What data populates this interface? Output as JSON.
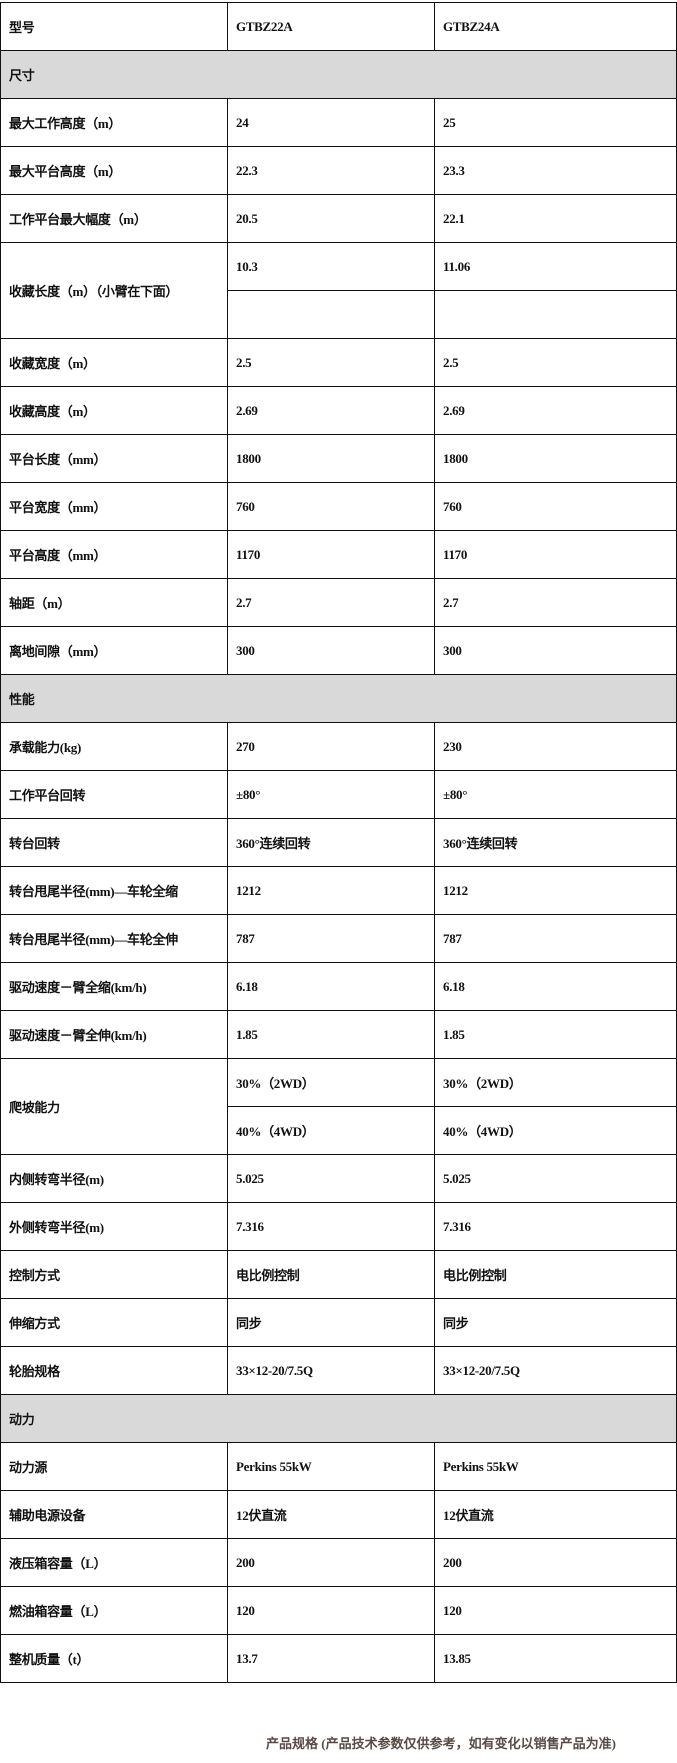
{
  "header": {
    "label": "型号",
    "models": [
      "GTBZ22A",
      "GTBZ24A"
    ]
  },
  "rows": [
    {
      "section": "尺寸"
    },
    {
      "label": "最大工作高度（m）",
      "values": [
        "24",
        "25"
      ]
    },
    {
      "label": "最大平台高度（m）",
      "values": [
        "22.3",
        "23.3"
      ]
    },
    {
      "label": "工作平台最大幅度（m）",
      "values": [
        "20.5",
        "22.1"
      ]
    },
    {
      "label": "收藏长度（m）（小臂在下面）",
      "sub": [
        [
          "10.3",
          "11.06"
        ],
        [
          "",
          ""
        ]
      ]
    },
    {
      "label": "收藏宽度（m）",
      "values": [
        "2.5",
        "2.5"
      ]
    },
    {
      "label": "收藏高度（m）",
      "values": [
        "2.69",
        "2.69"
      ]
    },
    {
      "label": "平台长度（mm）",
      "values": [
        "1800",
        "1800"
      ]
    },
    {
      "label": "平台宽度（mm）",
      "values": [
        "760",
        "760"
      ]
    },
    {
      "label": "平台高度（mm）",
      "values": [
        "1170",
        "1170"
      ]
    },
    {
      "label": "轴距（m）",
      "values": [
        "2.7",
        "2.7"
      ]
    },
    {
      "label": "离地间隙（mm）",
      "values": [
        "300",
        "300"
      ]
    },
    {
      "section": "性能"
    },
    {
      "label": "承载能力(kg)",
      "values": [
        "270",
        "230"
      ]
    },
    {
      "label": "工作平台回转",
      "values": [
        "±80°",
        "±80°"
      ]
    },
    {
      "label": "转台回转",
      "values": [
        "360°连续回转",
        "360°连续回转"
      ]
    },
    {
      "label": "转台甩尾半径(mm)—车轮全缩",
      "values": [
        "1212",
        "1212"
      ]
    },
    {
      "label": "转台甩尾半径(mm)—车轮全伸",
      "values": [
        "787",
        "787"
      ]
    },
    {
      "label": "驱动速度－臂全缩(km/h)",
      "values": [
        "6.18",
        "6.18"
      ]
    },
    {
      "label": "驱动速度－臂全伸(km/h)",
      "values": [
        "1.85",
        "1.85"
      ]
    },
    {
      "label": "爬坡能力",
      "sub": [
        [
          "30%（2WD）",
          "30%（2WD）"
        ],
        [
          "40%（4WD）",
          "40%（4WD）"
        ]
      ]
    },
    {
      "label": "内侧转弯半径(m)",
      "values": [
        "5.025",
        "5.025"
      ]
    },
    {
      "label": "外侧转弯半径(m)",
      "values": [
        "7.316",
        "7.316"
      ]
    },
    {
      "label": "控制方式",
      "values": [
        "电比例控制",
        "电比例控制"
      ]
    },
    {
      "label": "伸缩方式",
      "values": [
        "同步",
        "同步"
      ]
    },
    {
      "label": "轮胎规格",
      "values": [
        "33×12-20/7.5Q",
        "33×12-20/7.5Q"
      ]
    },
    {
      "section": "动力"
    },
    {
      "label": "动力源",
      "values": [
        "Perkins 55kW",
        "Perkins 55kW"
      ]
    },
    {
      "label": "辅助电源设备",
      "values": [
        "12伏直流",
        "12伏直流"
      ]
    },
    {
      "label": "液压箱容量（L）",
      "values": [
        "200",
        "200"
      ]
    },
    {
      "label": "燃油箱容量（L）",
      "values": [
        "120",
        "120"
      ]
    },
    {
      "label": "整机质量（t）",
      "values": [
        "13.7",
        "13.85"
      ]
    }
  ],
  "footer": "产品规格 (产品技术参数仅供参考，如有变化以销售产品为准)"
}
